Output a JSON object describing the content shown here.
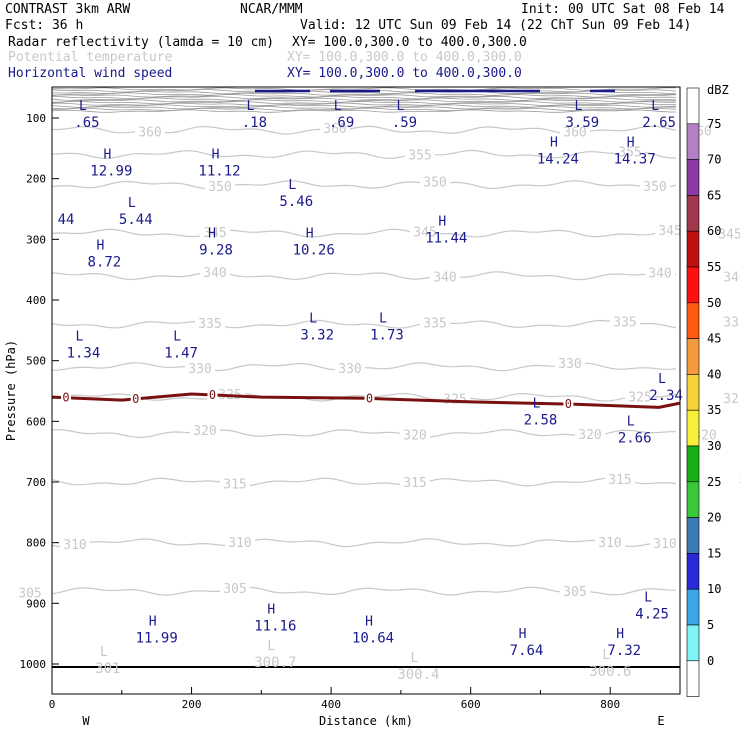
{
  "header": {
    "program": "CONTRAST  3km ARW",
    "org": "NCAR/MMM",
    "init": "Init: 00 UTC Sat 08 Feb 14",
    "fcst": "Fcst:   36 h",
    "valid": "Valid: 12 UTC Sun 09 Feb 14 (22 ChT Sun 09 Feb 14)",
    "field1": "Radar reflectivity (lamda = 10 cm)",
    "xy1": "XY= 100.0,300.0 to 400.0,300.0",
    "field2": "Potential temperature",
    "xy2": "XY= 100.0,300.0 to 400.0,300.0",
    "field3": "Horizontal wind speed",
    "xy3": "XY= 100.0,300.0 to 400.0,300.0"
  },
  "colorbar": {
    "unit": "dBZ",
    "levels": [
      "75",
      "70",
      "65",
      "60",
      "55",
      "50",
      "45",
      "40",
      "35",
      "30",
      "25",
      "20",
      "15",
      "10",
      "5",
      "0"
    ],
    "colors": [
      "#ffffff",
      "#b57fc4",
      "#8a3aa0",
      "#a0384e",
      "#c01010",
      "#ff1010",
      "#ff5a10",
      "#f59a3c",
      "#f7d23a",
      "#f7f03a",
      "#16b016",
      "#39c839",
      "#3a7ab5",
      "#2a2ad8",
      "#3aa5e8",
      "#7ef5f5",
      "#ffffff"
    ],
    "colors_note": "fill order top to bottom"
  },
  "chart_data": {
    "type": "cross-section",
    "xlabel": "Distance (km)",
    "ylabel": "Pressure (hPa)",
    "xlim": [
      0,
      900
    ],
    "ylim": [
      1050,
      40
    ],
    "xticks": [
      "0",
      "200",
      "400",
      "600",
      "800"
    ],
    "yticks": [
      "100",
      "200",
      "300",
      "400",
      "500",
      "600",
      "700",
      "800",
      "900",
      "1000"
    ],
    "x_end_labels": {
      "west": "W",
      "east": "E"
    },
    "theta_contours": [
      {
        "level": "360",
        "p": 120,
        "labels_x": [
          150,
          335,
          575,
          700
        ]
      },
      {
        "level": "355",
        "p": 160,
        "labels_x": [
          420,
          630,
          755
        ]
      },
      {
        "level": "350",
        "p": 210,
        "labels_x": [
          220,
          435,
          655,
          760
        ]
      },
      {
        "level": "345",
        "p": 290,
        "labels_x": [
          215,
          425,
          670,
          730
        ]
      },
      {
        "level": "340",
        "p": 360,
        "labels_x": [
          215,
          445,
          660,
          735
        ]
      },
      {
        "level": "335",
        "p": 440,
        "labels_x": [
          210,
          435,
          625,
          735
        ]
      },
      {
        "level": "330",
        "p": 510,
        "labels_x": [
          200,
          350,
          570,
          755
        ]
      },
      {
        "level": "325",
        "p": 560,
        "labels_x": [
          230,
          455,
          640,
          735
        ]
      },
      {
        "level": "320",
        "p": 620,
        "labels_x": [
          205,
          415,
          590,
          705
        ]
      },
      {
        "level": "315",
        "p": 700,
        "labels_x": [
          235,
          415,
          620,
          750
        ]
      },
      {
        "level": "310",
        "p": 800,
        "labels_x": [
          75,
          240,
          610,
          665
        ]
      },
      {
        "level": "305",
        "p": 880,
        "labels_x": [
          30,
          235,
          575,
          755
        ]
      }
    ],
    "wind_extrema": [
      {
        "kind": "L",
        "value": ".65",
        "x": 30,
        "p": 100
      },
      {
        "kind": "L",
        "value": ".18",
        "x": 270,
        "p": 100
      },
      {
        "kind": "L",
        "value": ".69",
        "x": 395,
        "p": 100
      },
      {
        "kind": "L",
        "value": ".59",
        "x": 485,
        "p": 100
      },
      {
        "kind": "L",
        "value": "3.59",
        "x": 740,
        "p": 100
      },
      {
        "kind": "L",
        "value": "2.65",
        "x": 850,
        "p": 100
      },
      {
        "kind": "H",
        "value": "12.99",
        "x": 65,
        "p": 180
      },
      {
        "kind": "H",
        "value": "11.12",
        "x": 220,
        "p": 180
      },
      {
        "kind": "H",
        "value": "14.24",
        "x": 705,
        "p": 160
      },
      {
        "kind": "H",
        "value": "14.37",
        "x": 815,
        "p": 160
      },
      {
        "kind": "L",
        "value": "5.46",
        "x": 330,
        "p": 230
      },
      {
        "kind": "L",
        "value": "5.44",
        "x": 100,
        "p": 260
      },
      {
        "kind": "",
        "value": "44",
        "x": 0,
        "p": 260
      },
      {
        "kind": "H",
        "value": "11.44",
        "x": 545,
        "p": 290
      },
      {
        "kind": "H",
        "value": "9.28",
        "x": 215,
        "p": 310
      },
      {
        "kind": "H",
        "value": "10.26",
        "x": 355,
        "p": 310
      },
      {
        "kind": "H",
        "value": "8.72",
        "x": 55,
        "p": 330
      },
      {
        "kind": "L",
        "value": "3.32",
        "x": 360,
        "p": 450
      },
      {
        "kind": "L",
        "value": "1.73",
        "x": 460,
        "p": 450
      },
      {
        "kind": "L",
        "value": "1.34",
        "x": 25,
        "p": 480
      },
      {
        "kind": "L",
        "value": "1.47",
        "x": 165,
        "p": 480
      },
      {
        "kind": "L",
        "value": "2.34",
        "x": 860,
        "p": 550
      },
      {
        "kind": "L",
        "value": "2.58",
        "x": 680,
        "p": 590
      },
      {
        "kind": "L",
        "value": "2.66",
        "x": 815,
        "p": 620
      },
      {
        "kind": "L",
        "value": "4.25",
        "x": 840,
        "p": 910
      },
      {
        "kind": "H",
        "value": "11.99",
        "x": 130,
        "p": 950
      },
      {
        "kind": "H",
        "value": "11.16",
        "x": 300,
        "p": 930
      },
      {
        "kind": "H",
        "value": "10.64",
        "x": 440,
        "p": 950
      },
      {
        "kind": "H",
        "value": "7.64",
        "x": 660,
        "p": 970
      },
      {
        "kind": "H",
        "value": "7.32",
        "x": 800,
        "p": 970
      },
      {
        "kind": "L",
        "value": "301",
        "x": 60,
        "p": 1000,
        "gray": true
      },
      {
        "kind": "L",
        "value": "300.7",
        "x": 300,
        "p": 990,
        "gray": true
      },
      {
        "kind": "L",
        "value": "300.4",
        "x": 505,
        "p": 1010,
        "gray": true
      },
      {
        "kind": "L",
        "value": "300.6",
        "x": 780,
        "p": 1005,
        "gray": true
      }
    ],
    "zero_line_label": "0",
    "zero_line": [
      {
        "x": 0,
        "p": 560
      },
      {
        "x": 100,
        "p": 565
      },
      {
        "x": 200,
        "p": 555
      },
      {
        "x": 300,
        "p": 560
      },
      {
        "x": 450,
        "p": 562
      },
      {
        "x": 600,
        "p": 568
      },
      {
        "x": 750,
        "p": 572
      },
      {
        "x": 870,
        "p": 577
      },
      {
        "x": 900,
        "p": 570
      }
    ],
    "zero_labels_x": [
      20,
      120,
      230,
      455,
      740
    ]
  }
}
